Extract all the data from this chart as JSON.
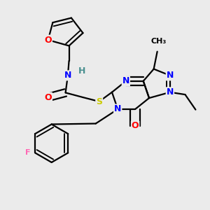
{
  "background_color": "#ebebeb",
  "bond_color": "#000000",
  "bond_width": 1.6,
  "atom_colors": {
    "O": "#ff0000",
    "N": "#0000ff",
    "S": "#cccc00",
    "F": "#ff69b4",
    "H": "#4a9090",
    "C": "#000000"
  },
  "font_size": 9,
  "fig_width": 3.0,
  "fig_height": 3.0
}
